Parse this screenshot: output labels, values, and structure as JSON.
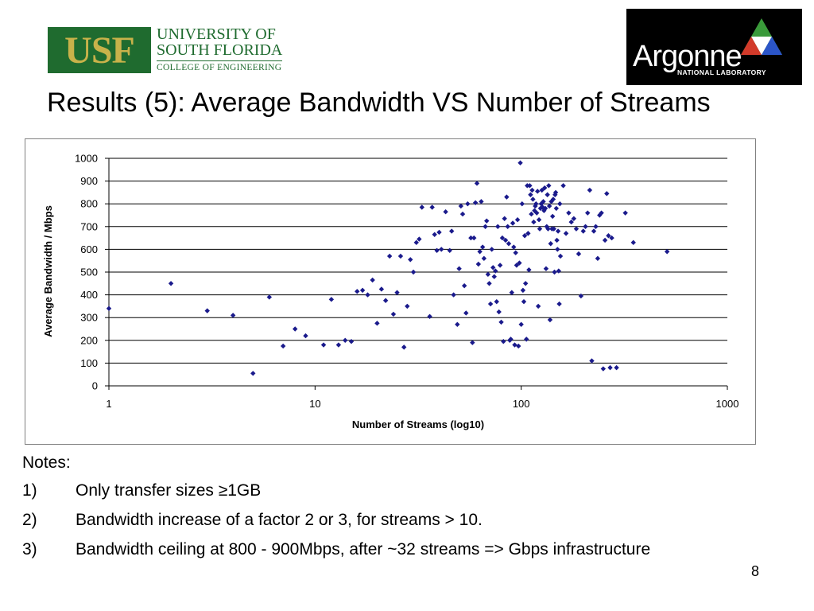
{
  "logos": {
    "usf": {
      "mark": "USF",
      "line1": "UNIVERSITY OF",
      "line2": "SOUTH FLORIDA",
      "line3": "COLLEGE OF ENGINEERING"
    },
    "argonne": {
      "word": "Argonne",
      "sub": "NATIONAL LABORATORY"
    }
  },
  "title": "Results (5): Average Bandwidth VS Number of Streams",
  "chart_data": {
    "type": "scatter",
    "xlabel": "Number of Streams (log10)",
    "ylabel": "Average Bandwidth / Mbps",
    "xscale": "log",
    "xlim": [
      1,
      1000
    ],
    "ylim": [
      0,
      1000
    ],
    "xticks": [
      "1",
      "10",
      "100",
      "1000"
    ],
    "yticks": [
      "0",
      "100",
      "200",
      "300",
      "400",
      "500",
      "600",
      "700",
      "800",
      "900",
      "1000"
    ],
    "grid": "horizontal",
    "legend": "none",
    "marker_color": "#1a1a8c",
    "x": [
      1,
      2,
      3,
      4,
      5,
      6,
      7,
      8,
      9,
      11,
      12,
      13,
      14,
      15,
      16,
      17,
      18,
      19,
      20,
      21,
      22,
      23,
      24,
      25,
      26,
      27,
      28,
      29,
      30,
      31,
      32,
      33,
      36,
      37,
      38,
      39,
      40,
      41,
      43,
      45,
      46,
      47,
      49,
      50,
      51,
      52,
      53,
      54,
      55,
      57,
      58,
      59,
      60,
      61,
      62,
      63,
      64,
      65,
      66,
      67,
      68,
      69,
      70,
      71,
      72,
      73,
      74,
      75,
      76,
      77,
      78,
      79,
      80,
      81,
      82,
      83,
      84,
      85,
      86,
      87,
      88,
      89,
      90,
      91,
      92,
      93,
      94,
      95,
      96,
      97,
      98,
      99,
      100,
      101,
      102,
      103,
      104,
      105,
      106,
      107,
      108,
      109,
      110,
      111,
      112,
      113,
      114,
      115,
      116,
      117,
      118,
      119,
      120,
      121,
      122,
      123,
      124,
      125,
      126,
      127,
      128,
      129,
      130,
      131,
      132,
      133,
      134,
      135,
      136,
      137,
      138,
      139,
      140,
      141,
      142,
      143,
      144,
      145,
      146,
      147,
      148,
      149,
      150,
      151,
      152,
      153,
      154,
      155,
      160,
      165,
      170,
      175,
      180,
      185,
      190,
      195,
      200,
      205,
      210,
      215,
      220,
      225,
      230,
      235,
      240,
      245,
      250,
      255,
      260,
      265,
      270,
      275,
      290,
      320,
      350,
      510
    ],
    "y": [
      340,
      450,
      330,
      310,
      55,
      390,
      175,
      250,
      220,
      180,
      380,
      180,
      200,
      195,
      415,
      420,
      400,
      465,
      275,
      425,
      375,
      570,
      315,
      410,
      570,
      170,
      350,
      555,
      500,
      630,
      645,
      785,
      305,
      785,
      665,
      595,
      675,
      600,
      765,
      595,
      680,
      400,
      270,
      515,
      790,
      755,
      440,
      320,
      800,
      650,
      190,
      650,
      805,
      890,
      535,
      590,
      810,
      610,
      560,
      700,
      725,
      490,
      450,
      360,
      600,
      520,
      480,
      505,
      370,
      700,
      325,
      530,
      280,
      650,
      195,
      735,
      640,
      830,
      700,
      625,
      200,
      205,
      410,
      715,
      610,
      180,
      585,
      530,
      730,
      175,
      540,
      980,
      270,
      800,
      420,
      370,
      660,
      450,
      205,
      880,
      670,
      510,
      880,
      840,
      755,
      860,
      820,
      720,
      770,
      790,
      800,
      760,
      855,
      350,
      730,
      690,
      780,
      800,
      860,
      785,
      810,
      770,
      870,
      780,
      515,
      700,
      840,
      690,
      880,
      790,
      290,
      625,
      810,
      690,
      745,
      820,
      690,
      500,
      840,
      850,
      780,
      640,
      600,
      680,
      505,
      360,
      800,
      570,
      880,
      670,
      760,
      720,
      735,
      690,
      580,
      395,
      680,
      700,
      760,
      860,
      110,
      680,
      700,
      560,
      750,
      760,
      75,
      640,
      845,
      660,
      80,
      650,
      80,
      760,
      630,
      590
    ]
  },
  "notes": {
    "heading": "Notes:",
    "items": [
      {
        "num": "1)",
        "text": "Only transfer sizes ≥1GB"
      },
      {
        "num": "2)",
        "text": "Bandwidth increase of a factor 2 or 3, for streams > 10."
      },
      {
        "num": "3)",
        "text": "Bandwidth ceiling at 800 - 900Mbps, after ~32 streams => Gbps infrastructure"
      }
    ]
  },
  "page_number": "8"
}
